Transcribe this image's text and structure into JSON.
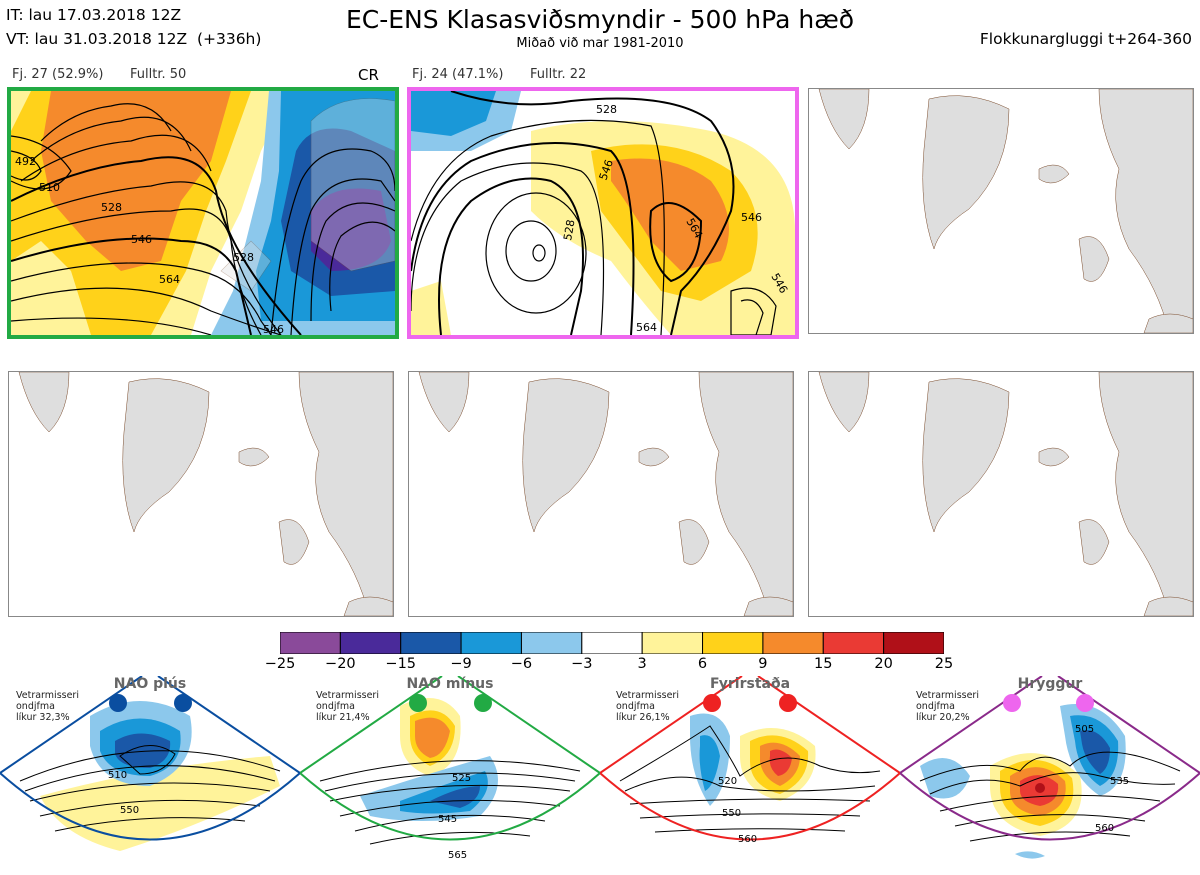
{
  "header": {
    "init_time": "IT: lau 17.03.2018 12Z",
    "valid_time": "VT: lau 31.03.2018 12Z  (+336h)",
    "title": "EC-ENS Klasasviðsmyndir - 500 hPa hæð",
    "subtitle": "Miðað við mar 1981-2010",
    "window": "Flokkunargluggi t+264-360"
  },
  "clusters": [
    {
      "label": "Fj. 27 (52.9%)",
      "repr": "Fulltr. 50",
      "regime_tag": "CR",
      "border_color": "#22aa44",
      "contour_labels": [
        "510",
        "528",
        "546",
        "564",
        "546",
        "528",
        "492"
      ]
    },
    {
      "label": "Fj. 24 (47.1%)",
      "repr": "Fulltr. 22",
      "border_color": "#ee66ee",
      "contour_labels": [
        "528",
        "546",
        "564",
        "528",
        "546",
        "546",
        "564"
      ]
    }
  ],
  "colorbar": {
    "ticks": [
      "−25",
      "−20",
      "−15",
      "−9",
      "−6",
      "−3",
      "3",
      "6",
      "9",
      "15",
      "20",
      "25"
    ],
    "colors": [
      "#8a4a9a",
      "#4a2a9a",
      "#1a58a8",
      "#1a98d8",
      "#8cc8ec",
      "#ffffff",
      "#fff39a",
      "#ffd21a",
      "#f58a2c",
      "#ea3a34",
      "#b01018"
    ]
  },
  "regimes": [
    {
      "name": "NAO plús",
      "stat_label": "Vetrarmisseri\nondjfma\nlíkur 32,3%",
      "color": "#0a4ea0",
      "contour_labels": [
        "510",
        "550"
      ]
    },
    {
      "name": "NAO mínus",
      "stat_label": "Vetrarmisseri\nondjfma\nlíkur 21,4%",
      "color": "#22aa44",
      "contour_labels": [
        "525",
        "545",
        "565"
      ]
    },
    {
      "name": "Fyrirstaða",
      "stat_label": "Vetrarmisseri\nondjfma\nlíkur 26,1%",
      "color": "#ee2222",
      "contour_labels": [
        "520",
        "550",
        "560"
      ]
    },
    {
      "name": "Hryggur",
      "stat_label": "Vetrarmisseri\nondjfma\nlíkur 20,2%",
      "color": "#ee66ee",
      "contour_labels": [
        "505",
        "535",
        "560"
      ]
    }
  ]
}
